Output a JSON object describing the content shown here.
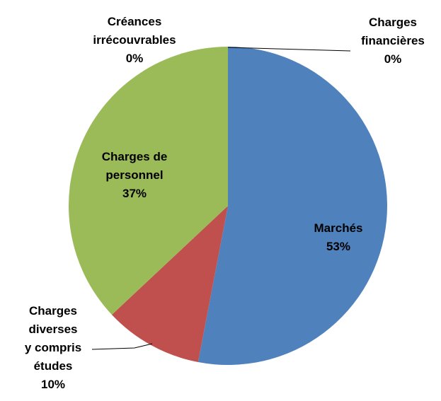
{
  "chart_data": {
    "type": "pie",
    "categories": [
      "Marchés",
      "Charges\ndiverses\ny compris\nétudes",
      "Charges de\npersonnel",
      "Créances\nirrécouvrables",
      "Charges\nfinancières"
    ],
    "values": [
      53,
      10,
      37,
      0,
      0
    ],
    "value_labels": [
      "53%",
      "10%",
      "37%",
      "0%",
      "0%"
    ],
    "colors": [
      "#4f81bd",
      "#c0504d",
      "#9bbb59",
      "#8064a2",
      "#4bacc6"
    ]
  }
}
